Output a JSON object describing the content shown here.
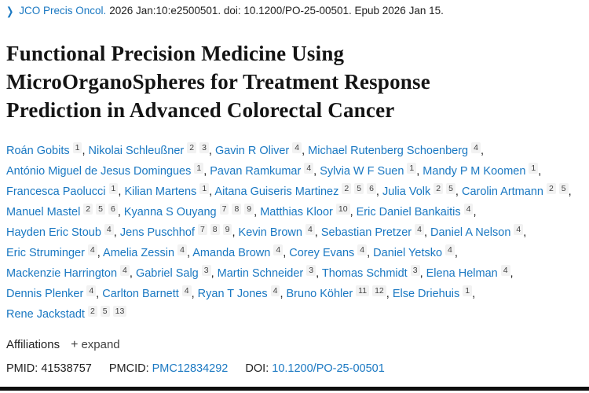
{
  "journal": {
    "chevron_icon": "❯",
    "link": "JCO Precis Oncol.",
    "citation": "2026 Jan:10:e2500501. doi: 10.1200/PO-25-00501. Epub 2026 Jan 15."
  },
  "page_title": "Functional Precision Medicine Using MicroOrganoSpheres for Treatment Response Prediction in Advanced Colorectal Cancer",
  "authors_separator": ",",
  "authors": [
    {
      "name": "Roán Gobits",
      "affiliations": [
        "1"
      ]
    },
    {
      "name": "Nikolai Schleußner",
      "affiliations": [
        "2",
        "3"
      ]
    },
    {
      "name": "Gavin R Oliver",
      "affiliations": [
        "4"
      ]
    },
    {
      "name": "Michael Rutenberg Schoenberg",
      "affiliations": [
        "4"
      ]
    },
    {
      "name": "António Miguel de Jesus Domingues",
      "affiliations": [
        "1"
      ]
    },
    {
      "name": "Pavan Ramkumar",
      "affiliations": [
        "4"
      ]
    },
    {
      "name": "Sylvia W F Suen",
      "affiliations": [
        "1"
      ]
    },
    {
      "name": "Mandy P M Koomen",
      "affiliations": [
        "1"
      ]
    },
    {
      "name": "Francesca Paolucci",
      "affiliations": [
        "1"
      ]
    },
    {
      "name": "Kilian Martens",
      "affiliations": [
        "1"
      ]
    },
    {
      "name": "Aitana Guiseris Martinez",
      "affiliations": [
        "2",
        "5",
        "6"
      ]
    },
    {
      "name": "Julia Volk",
      "affiliations": [
        "2",
        "5"
      ]
    },
    {
      "name": "Carolin Artmann",
      "affiliations": [
        "2",
        "5"
      ]
    },
    {
      "name": "Manuel Mastel",
      "affiliations": [
        "2",
        "5",
        "6"
      ]
    },
    {
      "name": "Kyanna S Ouyang",
      "affiliations": [
        "7",
        "8",
        "9"
      ]
    },
    {
      "name": "Matthias Kloor",
      "affiliations": [
        "10"
      ]
    },
    {
      "name": "Eric Daniel Bankaitis",
      "affiliations": [
        "4"
      ]
    },
    {
      "name": "Hayden Eric Stoub",
      "affiliations": [
        "4"
      ]
    },
    {
      "name": "Jens Puschhof",
      "affiliations": [
        "7",
        "8",
        "9"
      ]
    },
    {
      "name": "Kevin Brown",
      "affiliations": [
        "4"
      ]
    },
    {
      "name": "Sebastian Pretzer",
      "affiliations": [
        "4"
      ]
    },
    {
      "name": "Daniel A Nelson",
      "affiliations": [
        "4"
      ]
    },
    {
      "name": "Eric Struminger",
      "affiliations": [
        "4"
      ]
    },
    {
      "name": "Amelia Zessin",
      "affiliations": [
        "4"
      ]
    },
    {
      "name": "Amanda Brown",
      "affiliations": [
        "4"
      ]
    },
    {
      "name": "Corey Evans",
      "affiliations": [
        "4"
      ]
    },
    {
      "name": "Daniel Yetsko",
      "affiliations": [
        "4"
      ]
    },
    {
      "name": "Mackenzie Harrington",
      "affiliations": [
        "4"
      ]
    },
    {
      "name": "Gabriel Salg",
      "affiliations": [
        "3"
      ]
    },
    {
      "name": "Martin Schneider",
      "affiliations": [
        "3"
      ]
    },
    {
      "name": "Thomas Schmidt",
      "affiliations": [
        "3"
      ]
    },
    {
      "name": "Elena Helman",
      "affiliations": [
        "4"
      ]
    },
    {
      "name": "Dennis Plenker",
      "affiliations": [
        "4"
      ]
    },
    {
      "name": "Carlton Barnett",
      "affiliations": [
        "4"
      ]
    },
    {
      "name": "Ryan T Jones",
      "affiliations": [
        "4"
      ]
    },
    {
      "name": "Bruno Köhler",
      "affiliations": [
        "11",
        "12"
      ]
    },
    {
      "name": "Else Driehuis",
      "affiliations": [
        "1"
      ]
    },
    {
      "name": "Rene Jackstadt",
      "affiliations": [
        "2",
        "5",
        "13"
      ]
    }
  ],
  "affiliations": {
    "label": "Affiliations",
    "expand_button": {
      "icon": "+",
      "label": "expand"
    }
  },
  "ids": {
    "pmid_label": "PMID:",
    "pmid_value": "41538757",
    "pmcid_label": "PMCID:",
    "pmcid_value": "PMC12834292",
    "doi_label": "DOI:",
    "doi_value": "10.1200/PO-25-00501"
  },
  "colors": {
    "link_blue": "#1a78c2",
    "text_dark": "#212121",
    "superscript_bg": "#f2f2f2",
    "bottom_bar": "#0e0e0e"
  }
}
